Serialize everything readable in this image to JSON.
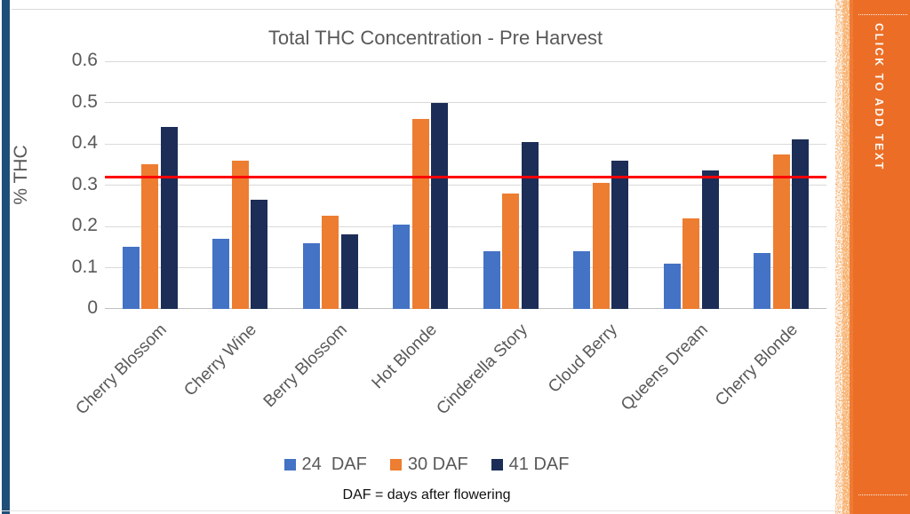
{
  "slide": {
    "placeholder_text": "CLICK TO ADD TEXT"
  },
  "colors": {
    "series_24daf": "#4472C4",
    "series_30daf": "#ED7D31",
    "series_41daf": "#1C2E58",
    "threshold_line": "#FE0101",
    "left_accent_bar": "#1F4E79",
    "placeholder_orange": "#EC6E26",
    "gridline": "#D9D9D9",
    "axis_text": "#595959"
  },
  "chart_data": {
    "type": "bar",
    "title": "Total THC Concentration - Pre Harvest",
    "xlabel": "",
    "ylabel": "% THC",
    "ylim": [
      0,
      0.6
    ],
    "ytick_step": 0.1,
    "ytick_labels": [
      "0",
      "0.1",
      "0.2",
      "0.3",
      "0.4",
      "0.5",
      "0.6"
    ],
    "grid": true,
    "legend_position": "bottom",
    "categories": [
      "Cherry Blossom",
      "Cherry Wine",
      "Berry Blossom",
      "Hot Blonde",
      "Cinderella Story",
      "Cloud Berry",
      "Queens Dream",
      "Cherry Blonde"
    ],
    "series": [
      {
        "name": "24  DAF",
        "color_key": "series_24daf",
        "values": [
          0.15,
          0.17,
          0.16,
          0.205,
          0.14,
          0.14,
          0.11,
          0.135
        ]
      },
      {
        "name": "30 DAF",
        "color_key": "series_30daf",
        "values": [
          0.35,
          0.36,
          0.225,
          0.46,
          0.28,
          0.305,
          0.22,
          0.375
        ]
      },
      {
        "name": "41 DAF",
        "color_key": "series_41daf",
        "values": [
          0.44,
          0.265,
          0.18,
          0.5,
          0.405,
          0.36,
          0.335,
          0.41
        ]
      }
    ],
    "threshold_value": 0.32,
    "footnote": "DAF = days after flowering"
  }
}
